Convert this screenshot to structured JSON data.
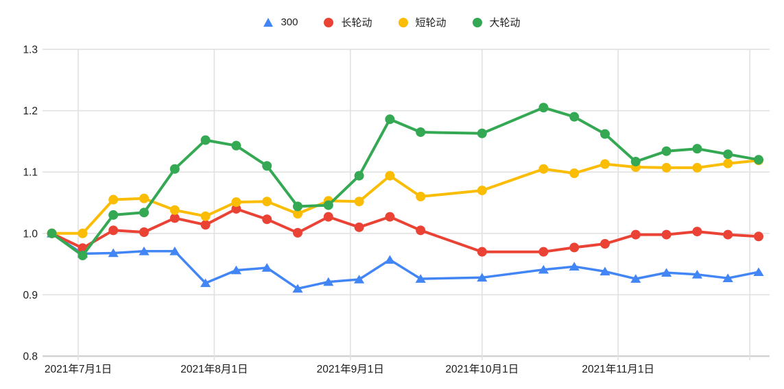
{
  "chart_data": {
    "type": "line",
    "x": [
      "2021-06-25",
      "2021-07-02",
      "2021-07-09",
      "2021-07-16",
      "2021-07-23",
      "2021-07-30",
      "2021-08-06",
      "2021-08-13",
      "2021-08-20",
      "2021-08-27",
      "2021-09-03",
      "2021-09-10",
      "2021-09-17",
      "2021-10-01",
      "2021-10-15",
      "2021-10-22",
      "2021-10-29",
      "2021-11-05",
      "2021-11-12",
      "2021-11-19",
      "2021-11-26",
      "2021-12-03"
    ],
    "series": [
      {
        "id": "hs300",
        "name": "300",
        "marker": "triangle",
        "color": "#4285F4",
        "values": [
          1.0,
          0.967,
          0.968,
          0.971,
          0.971,
          0.919,
          0.94,
          0.944,
          0.91,
          0.921,
          0.925,
          0.957,
          0.926,
          0.928,
          0.941,
          0.946,
          0.938,
          0.926,
          0.936,
          0.933,
          0.927,
          0.937
        ]
      },
      {
        "id": "long-rotation",
        "name": "长轮动",
        "marker": "circle",
        "color": "#EA4335",
        "values": [
          1.0,
          0.976,
          1.005,
          1.002,
          1.025,
          1.014,
          1.04,
          1.023,
          1.001,
          1.027,
          1.01,
          1.027,
          1.005,
          0.97,
          0.97,
          0.977,
          0.983,
          0.998,
          0.998,
          1.003,
          0.998,
          0.995
        ]
      },
      {
        "id": "short-rotation",
        "name": "短轮动",
        "marker": "circle",
        "color": "#FBBC04",
        "values": [
          1.0,
          1.0,
          1.055,
          1.057,
          1.038,
          1.028,
          1.051,
          1.052,
          1.032,
          1.053,
          1.052,
          1.094,
          1.06,
          1.07,
          1.105,
          1.098,
          1.113,
          1.108,
          1.107,
          1.107,
          1.114,
          1.119
        ]
      },
      {
        "id": "big-rotation",
        "name": "大轮动",
        "marker": "circle",
        "color": "#34A853",
        "values": [
          1.0,
          0.964,
          1.03,
          1.034,
          1.105,
          1.152,
          1.143,
          1.11,
          1.044,
          1.046,
          1.094,
          1.186,
          1.165,
          1.163,
          1.205,
          1.19,
          1.162,
          1.117,
          1.134,
          1.138,
          1.129,
          1.12
        ]
      }
    ],
    "ylim": [
      0.8,
      1.3
    ],
    "y_ticks": [
      {
        "v": 1.3,
        "label": "1.3"
      },
      {
        "v": 1.2,
        "label": "1.2"
      },
      {
        "v": 1.1,
        "label": "1.1"
      },
      {
        "v": 1.0,
        "label": "1.0"
      },
      {
        "v": 0.9,
        "label": "0.9"
      },
      {
        "v": 0.8,
        "label": "0.8"
      }
    ],
    "x_ticks": [
      {
        "date": "2021-07-01",
        "label": "2021年7月1日"
      },
      {
        "date": "2021-08-01",
        "label": "2021年8月1日"
      },
      {
        "date": "2021-09-01",
        "label": "2021年9月1日"
      },
      {
        "date": "2021-10-01",
        "label": "2021年10月1日"
      },
      {
        "date": "2021-11-01",
        "label": "2021年11月1日"
      },
      {
        "date": "2021-12-01",
        "label": ""
      }
    ],
    "grid": true,
    "legend_position": "top",
    "background": "#ffffff",
    "gridline_color": "#e2e2e2",
    "axis_line_color": "#d2d2d2",
    "text_color": "#1c1c1c"
  }
}
